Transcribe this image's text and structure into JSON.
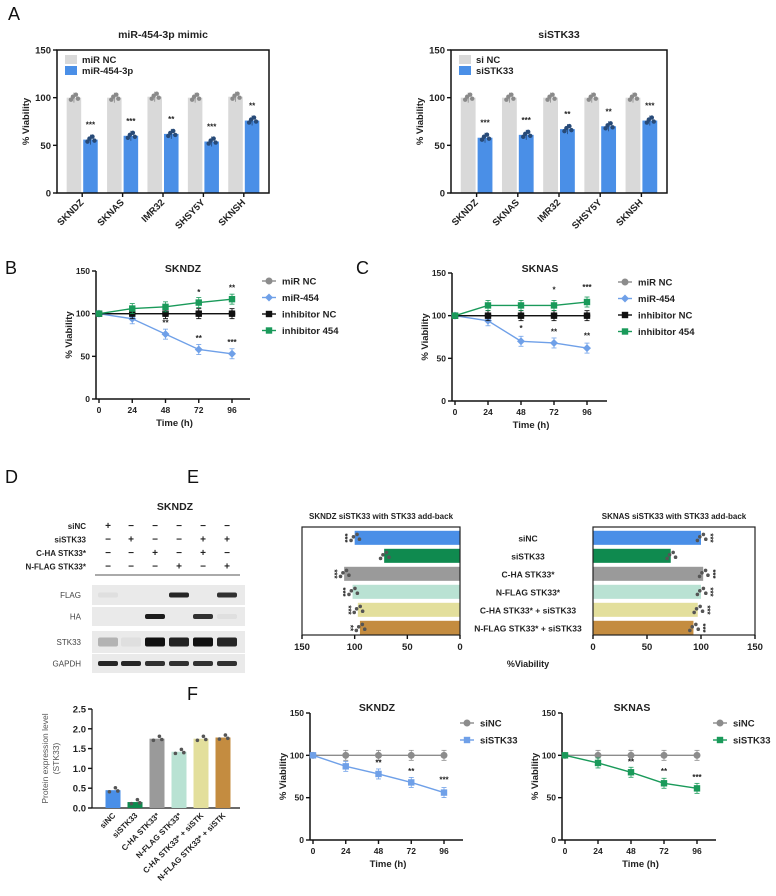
{
  "panels": [
    "A",
    "B",
    "C",
    "D",
    "E",
    "F"
  ],
  "chart_data": [
    {
      "type": "bar",
      "title": "miR-454-3p mimic",
      "ylabel": "% Viability",
      "ylim": [
        0,
        150
      ],
      "yticks": [
        "0",
        "50",
        "100",
        "150"
      ],
      "categories": [
        "SKNDZ",
        "SKNAS",
        "IMR32",
        "SHSY5Y",
        "SKNSH"
      ],
      "series": [
        {
          "name": "miR NC",
          "color": "#d9d9d9",
          "values": [
            100,
            100,
            101,
            100,
            101
          ]
        },
        {
          "name": "miR-454-3p",
          "color": "#4a8fe7",
          "values": [
            56,
            60,
            62,
            54,
            76
          ]
        }
      ],
      "significance": [
        "***",
        "***",
        "**",
        "***",
        "**"
      ]
    },
    {
      "type": "bar",
      "title": "siSTK33",
      "ylabel": "% Viability",
      "ylim": [
        0,
        150
      ],
      "yticks": [
        "0",
        "50",
        "100",
        "150"
      ],
      "categories": [
        "SKNDZ",
        "SKNAS",
        "IMR32",
        "SHSY5Y",
        "SKNSH"
      ],
      "series": [
        {
          "name": "si NC",
          "color": "#d9d9d9",
          "values": [
            100,
            100,
            100,
            100,
            100
          ]
        },
        {
          "name": "siSTK33",
          "color": "#4a8fe7",
          "values": [
            58,
            61,
            67,
            70,
            76
          ]
        }
      ],
      "significance": [
        "***",
        "***",
        "**",
        "**",
        "***"
      ]
    },
    {
      "type": "line",
      "title": "SKNDZ",
      "xlabel": "Time (h)",
      "ylabel": "% Viability",
      "ylim": [
        0,
        150
      ],
      "yticks": [
        "0",
        "50",
        "100",
        "150"
      ],
      "x": [
        0,
        24,
        48,
        72,
        96
      ],
      "xticks": [
        "0",
        "24",
        "48",
        "72",
        "96"
      ],
      "series": [
        {
          "name": "miR NC",
          "color": "#8c8c8c",
          "marker": "circle",
          "values": [
            100,
            100,
            100,
            100,
            100
          ]
        },
        {
          "name": "miR-454",
          "color": "#6fa0e8",
          "marker": "diamond",
          "values": [
            100,
            94,
            76,
            58,
            53
          ]
        },
        {
          "name": "inhibitor NC",
          "color": "#111111",
          "marker": "square",
          "values": [
            100,
            100,
            100,
            100,
            100
          ]
        },
        {
          "name": "inhibitor 454",
          "color": "#1a9a5a",
          "marker": "square",
          "values": [
            100,
            106,
            108,
            113,
            117
          ]
        }
      ],
      "annotations": [
        {
          "x": 48,
          "y": 86,
          "text": "**"
        },
        {
          "x": 72,
          "y": 68,
          "text": "**"
        },
        {
          "x": 72,
          "y": 122,
          "text": "*"
        },
        {
          "x": 96,
          "y": 63,
          "text": "***"
        },
        {
          "x": 96,
          "y": 127,
          "text": "**"
        }
      ]
    },
    {
      "type": "line",
      "title": "SKNAS",
      "xlabel": "Time (h)",
      "ylabel": "% Viability",
      "ylim": [
        0,
        150
      ],
      "yticks": [
        "0",
        "50",
        "100",
        "150"
      ],
      "x": [
        0,
        24,
        48,
        72,
        96
      ],
      "xticks": [
        "0",
        "24",
        "48",
        "72",
        "96"
      ],
      "series": [
        {
          "name": "miR NC",
          "color": "#8c8c8c",
          "marker": "circle",
          "values": [
            100,
            100,
            100,
            100,
            100
          ]
        },
        {
          "name": "miR-454",
          "color": "#6fa0e8",
          "marker": "diamond",
          "values": [
            100,
            94,
            70,
            68,
            62
          ]
        },
        {
          "name": "inhibitor NC",
          "color": "#111111",
          "marker": "square",
          "values": [
            100,
            100,
            100,
            100,
            100
          ]
        },
        {
          "name": "inhibitor 454",
          "color": "#1a9a5a",
          "marker": "square",
          "values": [
            100,
            112,
            112,
            112,
            116
          ]
        }
      ],
      "annotations": [
        {
          "x": 48,
          "y": 82,
          "text": "*"
        },
        {
          "x": 72,
          "y": 78,
          "text": "**"
        },
        {
          "x": 72,
          "y": 127,
          "text": "*"
        },
        {
          "x": 96,
          "y": 73,
          "text": "**"
        },
        {
          "x": 96,
          "y": 130,
          "text": "***"
        }
      ]
    },
    {
      "type": "bar",
      "ylabel": [
        "Protein expression level",
        "(STK33)"
      ],
      "ylim": [
        0,
        2.5
      ],
      "yticks": [
        "0.0",
        "0.5",
        "1.0",
        "1.5",
        "2.0",
        "2.5"
      ],
      "categories": [
        "siNC",
        "siSTK33",
        "C-HA STK33*",
        "N-FLAG STK33*",
        "C-HA STK33* + siSTK",
        "N-FLAG STK33* + siSTK"
      ],
      "values": [
        0.45,
        0.15,
        1.75,
        1.42,
        1.75,
        1.78
      ],
      "colors": [
        "#4a8fe7",
        "#0f8a4f",
        "#9a9a9a",
        "#b9e2d3",
        "#e3df9c",
        "#c48c40"
      ]
    },
    {
      "type": "bar",
      "orientation": "horizontal",
      "title": "SKNDZ siSTK33 with STK33 add-back",
      "xlabel": "%Viability",
      "xlim": [
        0,
        150
      ],
      "xticks": [
        "150",
        "100",
        "50",
        "0"
      ],
      "categories": [
        "siNC",
        "siSTK33",
        "C-HA STK33*",
        "N-FLAG STK33*",
        "C-HA STK33* + siSTK33",
        "N-FLAG STK33* + siSTK33"
      ],
      "values": [
        100,
        72,
        110,
        102,
        97,
        95
      ],
      "colors": [
        "#4a8fe7",
        "#0f8a4f",
        "#9a9a9a",
        "#b9e2d3",
        "#e3df9c",
        "#c48c40"
      ],
      "significance": [
        "***",
        "",
        "***",
        "***",
        "***",
        "**"
      ]
    },
    {
      "type": "bar",
      "orientation": "horizontal",
      "title": "SKNAS siSTK33 with STK33 add-back",
      "xlim": [
        0,
        150
      ],
      "xticks": [
        "0",
        "50",
        "100",
        "150"
      ],
      "values": [
        100,
        72,
        102,
        100,
        97,
        93
      ],
      "colors": [
        "#4a8fe7",
        "#0f8a4f",
        "#9a9a9a",
        "#b9e2d3",
        "#e3df9c",
        "#c48c40"
      ],
      "significance": [
        "***",
        "",
        "***",
        "***",
        "***",
        "***"
      ]
    },
    {
      "type": "line",
      "title": "SKNDZ",
      "xlabel": "Time (h)",
      "ylabel": "% Viability",
      "ylim": [
        0,
        150
      ],
      "yticks": [
        "0",
        "50",
        "100",
        "150"
      ],
      "x": [
        0,
        24,
        48,
        72,
        96
      ],
      "xticks": [
        "0",
        "24",
        "48",
        "72",
        "96"
      ],
      "series": [
        {
          "name": "siNC",
          "color": "#8c8c8c",
          "marker": "circle",
          "values": [
            100,
            100,
            100,
            100,
            100
          ]
        },
        {
          "name": "siSTK33",
          "color": "#6fa0e8",
          "marker": "square",
          "values": [
            100,
            87,
            78,
            68,
            56
          ]
        }
      ],
      "annotations": [
        {
          "x": 48,
          "y": 88,
          "text": "**"
        },
        {
          "x": 72,
          "y": 78,
          "text": "**"
        },
        {
          "x": 96,
          "y": 68,
          "text": "***"
        }
      ]
    },
    {
      "type": "line",
      "title": "SKNAS",
      "xlabel": "Time (h)",
      "ylabel": "% Viability",
      "ylim": [
        0,
        150
      ],
      "yticks": [
        "0",
        "50",
        "100",
        "150"
      ],
      "x": [
        0,
        24,
        48,
        72,
        96
      ],
      "xticks": [
        "0",
        "24",
        "48",
        "72",
        "96"
      ],
      "series": [
        {
          "name": "siNC",
          "color": "#8c8c8c",
          "marker": "circle",
          "values": [
            100,
            100,
            100,
            100,
            100
          ]
        },
        {
          "name": "siSTK33",
          "color": "#1a9a5a",
          "marker": "square",
          "values": [
            100,
            91,
            80,
            67,
            61
          ]
        }
      ],
      "annotations": [
        {
          "x": 48,
          "y": 89,
          "text": "**"
        },
        {
          "x": 72,
          "y": 78,
          "text": "**"
        },
        {
          "x": 96,
          "y": 71,
          "text": "***"
        }
      ]
    }
  ],
  "blot": {
    "title": "SKNDZ",
    "conditions": [
      {
        "label": "siNC",
        "signs": [
          "+",
          "−",
          "−",
          "−",
          "−",
          "−"
        ]
      },
      {
        "label": "siSTK33",
        "signs": [
          "−",
          "+",
          "−",
          "−",
          "+",
          "+"
        ]
      },
      {
        "label": "C-HA STK33*",
        "signs": [
          "−",
          "−",
          "+",
          "−",
          "+",
          "−"
        ]
      },
      {
        "label": "N-FLAG STK33*",
        "signs": [
          "−",
          "−",
          "−",
          "+",
          "−",
          "+"
        ]
      }
    ],
    "bands": [
      {
        "label": "FLAG",
        "intensity": [
          0.05,
          0,
          0,
          0.9,
          0,
          0.85
        ]
      },
      {
        "label": "HA",
        "intensity": [
          0,
          0,
          0.95,
          0,
          0.85,
          0.05
        ]
      },
      {
        "label": "STK33",
        "intensity": [
          0.25,
          0.05,
          1,
          0.92,
          1,
          0.9
        ]
      },
      {
        "label": "GAPDH",
        "intensity": [
          0.9,
          0.9,
          0.85,
          0.85,
          0.85,
          0.85
        ]
      }
    ]
  }
}
